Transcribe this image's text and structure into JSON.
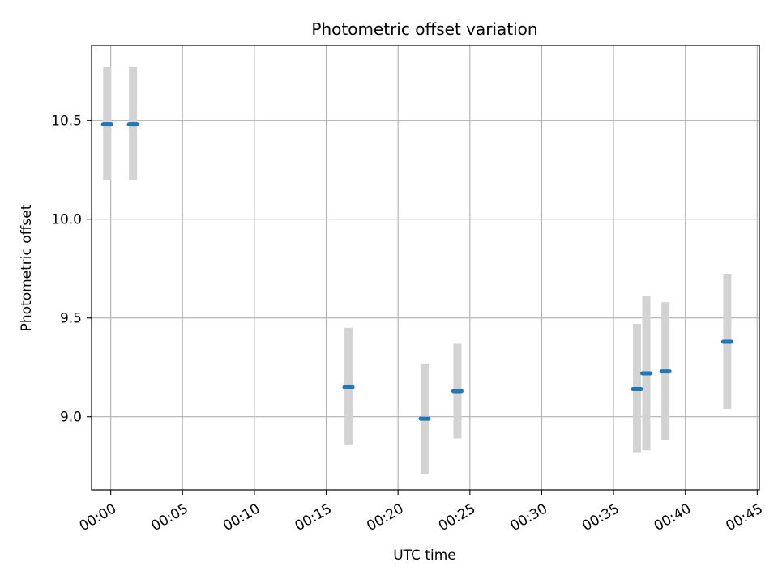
{
  "chart_data": {
    "type": "scatter",
    "title": "Photometric offset variation",
    "xlabel": "UTC time",
    "ylabel": "Photometric offset",
    "x_ticks": [
      "00:00",
      "00:05",
      "00:10",
      "00:15",
      "00:20",
      "00:25",
      "00:30",
      "00:35",
      "00:40",
      "00:45"
    ],
    "y_ticks": [
      9.0,
      9.5,
      10.0,
      10.5
    ],
    "xlim": [
      "23:58:40",
      "00:45:09"
    ],
    "ylim": [
      8.63,
      10.88
    ],
    "grid": true,
    "colors": {
      "marker": "#1f77b4",
      "errorbar": "#d3d3d3",
      "grid": "#b0b0b0"
    },
    "points": [
      {
        "time": "23:59:45",
        "value": 10.48,
        "low": 10.2,
        "high": 10.77
      },
      {
        "time": "00:01:33",
        "value": 10.48,
        "low": 10.2,
        "high": 10.77
      },
      {
        "time": "00:16:33",
        "value": 9.15,
        "low": 8.86,
        "high": 9.45
      },
      {
        "time": "00:21:51",
        "value": 8.99,
        "low": 8.71,
        "high": 9.27
      },
      {
        "time": "00:24:08",
        "value": 9.13,
        "low": 8.89,
        "high": 9.37
      },
      {
        "time": "00:36:38",
        "value": 9.14,
        "low": 8.82,
        "high": 9.47
      },
      {
        "time": "00:37:17",
        "value": 9.22,
        "low": 8.83,
        "high": 9.61
      },
      {
        "time": "00:38:37",
        "value": 9.23,
        "low": 8.88,
        "high": 9.58
      },
      {
        "time": "00:42:55",
        "value": 9.38,
        "low": 9.04,
        "high": 9.72
      }
    ]
  }
}
